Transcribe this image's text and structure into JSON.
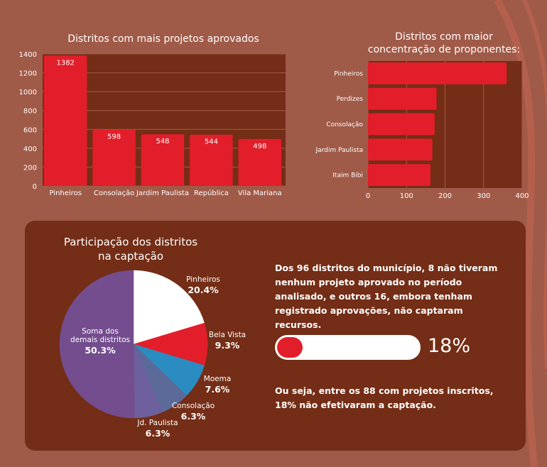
{
  "colors": {
    "background": "#a05a48",
    "panel": "#742d16",
    "bar": "#e31e2b",
    "white": "#ffffff",
    "pie": [
      "#ffffff",
      "#e31e2b",
      "#2a8cc0",
      "#5b6a99",
      "#6e5f9e",
      "#744d8f"
    ]
  },
  "chart_data": [
    {
      "type": "bar",
      "title": "Distritos com mais projetos aprovados",
      "categories": [
        "Pinheiros",
        "Consolação",
        "Jardim Paulista",
        "República",
        "Vila Mariana"
      ],
      "values": [
        1382,
        598,
        548,
        544,
        498
      ],
      "value_labels": [
        "1382",
        "598",
        "548",
        "544",
        "498"
      ],
      "ylim": [
        0,
        1400
      ],
      "yticks": [
        "0",
        "200",
        "400",
        "600",
        "800",
        "1000",
        "1200",
        "1400"
      ],
      "grid": true
    },
    {
      "type": "bar",
      "orientation": "horizontal",
      "title": "Distritos com maior concentração de proponentes:",
      "categories": [
        "Pinheiros",
        "Perdizes",
        "Consolação",
        "Jardim Paulista",
        "Itaim Bibi"
      ],
      "values": [
        360,
        178,
        173,
        167,
        162
      ],
      "xlim": [
        0,
        400
      ],
      "xticks": [
        "0",
        "100",
        "200",
        "300",
        "400"
      ],
      "grid": true
    },
    {
      "type": "pie",
      "title": "Participação dos distritos na captação",
      "labels": [
        "Pinheiros",
        "Bela Vista",
        "Moema",
        "Consolação",
        "Jd. Paulista",
        "Soma dos demais distritos"
      ],
      "values": [
        20.4,
        9.3,
        7.6,
        6.3,
        6.3,
        50.3
      ],
      "value_labels": [
        "20.4%",
        "9.3%",
        "7.6%",
        "6.3%",
        "6.3%",
        "50.3%"
      ]
    }
  ],
  "info": {
    "paragraph1": "Dos 96 distritos do município, 8 não tiveram nenhum projeto aprovado no período analisado, e outros 16, embora tenham registrado aprovações, não captaram recursos.",
    "progress_value": 0.18,
    "progress_label": "18%",
    "paragraph2": "Ou seja, entre os 88 com projetos inscritos, 18% não efetivaram a captação."
  }
}
